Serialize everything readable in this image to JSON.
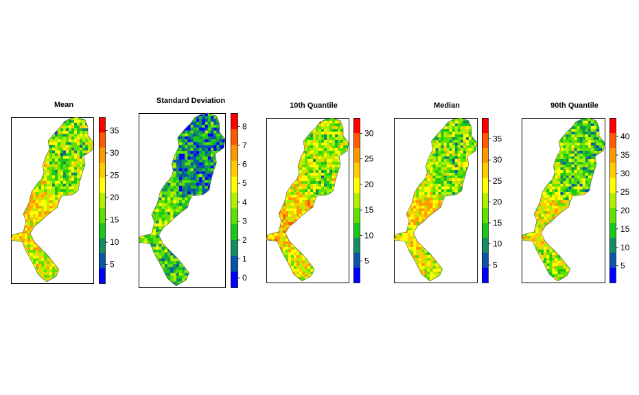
{
  "chart_data": {
    "type": "heatmap",
    "colorscale": [
      "#0000ff",
      "#0a55a8",
      "#138e5e",
      "#1bc81a",
      "#5ee000",
      "#aef000",
      "#ffff00",
      "#ffcc00",
      "#ff9900",
      "#ff5a00",
      "#ff0000"
    ],
    "panels": [
      {
        "title": "Mean",
        "range": [
          0.8,
          38
        ],
        "ticks": [
          5,
          10,
          15,
          20,
          25,
          30,
          35
        ],
        "bias": 0.55
      },
      {
        "title": "Standard Deviation",
        "range": [
          -0.5,
          8.7
        ],
        "ticks": [
          0,
          1,
          2,
          3,
          4,
          5,
          6,
          7,
          8
        ],
        "bias": 0.34
      },
      {
        "title": "10th Quantile",
        "range": [
          0.8,
          33
        ],
        "ticks": [
          5,
          10,
          15,
          20,
          25,
          30
        ],
        "bias": 0.58
      },
      {
        "title": "Median",
        "range": [
          0.8,
          40
        ],
        "ticks": [
          5,
          10,
          15,
          20,
          25,
          30,
          35
        ],
        "bias": 0.55
      },
      {
        "title": "90th Quantile",
        "range": [
          0.5,
          45
        ],
        "ticks": [
          5,
          10,
          15,
          20,
          25,
          30,
          35,
          40
        ],
        "bias": 0.5
      }
    ]
  }
}
